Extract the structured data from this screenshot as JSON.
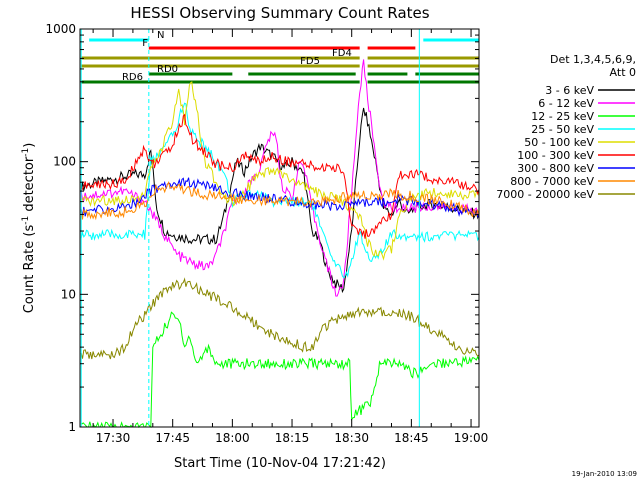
{
  "chart_data": {
    "type": "line",
    "title": "HESSI Observing Summary Count Rates",
    "xlabel": "Start Time (10-Nov-04 17:21:42)",
    "ylabel": "Count Rate (s",
    "ylabel_sup": "-1",
    "ylabel_mid": " detector",
    "ylabel_sup2": "-1",
    "ylabel_end": ")",
    "footer": "19-Jan-2010 13:09",
    "yscale": "log",
    "ylim": [
      1,
      1000
    ],
    "xlim_minutes_after_1730": [
      -8.3,
      92
    ],
    "x_ticks": [
      {
        "label": "17:30",
        "t": 0
      },
      {
        "label": "17:45",
        "t": 15
      },
      {
        "label": "18:00",
        "t": 30
      },
      {
        "label": "18:15",
        "t": 45
      },
      {
        "label": "18:30",
        "t": 60
      },
      {
        "label": "18:45",
        "t": 75
      },
      {
        "label": "19:00",
        "t": 90
      }
    ],
    "y_ticks": [
      {
        "label": "1",
        "v": 1
      },
      {
        "label": "10",
        "v": 10
      },
      {
        "label": "100",
        "v": 100
      },
      {
        "label": "1000",
        "v": 1000
      }
    ],
    "legend_header": [
      "Det 1,3,4,5,6,9,",
      "Att 0"
    ],
    "legend_placement": "right",
    "flags": [
      {
        "label": "N",
        "color": "#00ffff",
        "segments": [
          [
            -6,
            9
          ],
          [
            78,
            92
          ]
        ]
      },
      {
        "label": "F",
        "color": "#ff0000",
        "segments": [
          [
            9,
            62
          ],
          [
            64,
            76
          ]
        ]
      },
      {
        "label": "FD4",
        "color": "#999900",
        "segments": [
          [
            -8,
            62
          ],
          [
            64,
            92
          ]
        ]
      },
      {
        "label": "FD5",
        "color": "#999900",
        "segments": [
          [
            -8,
            62
          ],
          [
            64,
            92
          ]
        ]
      },
      {
        "label": "RD0",
        "color": "#007700",
        "segments": [
          [
            9,
            30
          ],
          [
            34,
            61
          ],
          [
            64,
            74
          ],
          [
            76,
            92
          ]
        ]
      },
      {
        "label": "RD6",
        "color": "#007700",
        "segments": [
          [
            -8,
            62
          ],
          [
            64,
            92
          ]
        ]
      }
    ],
    "series": [
      {
        "name": "3 - 6 keV",
        "color": "#000000",
        "points": [
          [
            -8,
            65
          ],
          [
            5,
            80
          ],
          [
            8,
            80
          ],
          [
            9.5,
            120
          ],
          [
            11,
            45
          ],
          [
            13,
            30
          ],
          [
            15,
            28
          ],
          [
            20,
            26
          ],
          [
            26,
            26
          ],
          [
            28,
            40
          ],
          [
            31,
            100
          ],
          [
            33,
            85
          ],
          [
            35,
            110
          ],
          [
            37,
            130
          ],
          [
            40,
            110
          ],
          [
            43,
            90
          ],
          [
            45,
            100
          ],
          [
            48,
            80
          ],
          [
            50,
            30
          ],
          [
            52,
            25
          ],
          [
            54,
            15
          ],
          [
            56,
            12
          ],
          [
            58,
            11
          ],
          [
            60,
            30
          ],
          [
            62,
            150
          ],
          [
            63,
            250
          ],
          [
            64,
            200
          ],
          [
            66,
            100
          ],
          [
            68,
            45
          ],
          [
            70,
            40
          ],
          [
            72,
            50
          ],
          [
            74,
            40
          ],
          [
            76,
            45
          ],
          [
            80,
            48
          ],
          [
            85,
            45
          ],
          [
            92,
            40
          ]
        ]
      },
      {
        "name": "6 - 12 keV",
        "color": "#ff00ff",
        "points": [
          [
            -8,
            55
          ],
          [
            3,
            60
          ],
          [
            8,
            50
          ],
          [
            10,
            40
          ],
          [
            13,
            28
          ],
          [
            16,
            20
          ],
          [
            20,
            17
          ],
          [
            24,
            16
          ],
          [
            26,
            20
          ],
          [
            28,
            30
          ],
          [
            30,
            48
          ],
          [
            33,
            60
          ],
          [
            37,
            90
          ],
          [
            39,
            150
          ],
          [
            41,
            160
          ],
          [
            42,
            80
          ],
          [
            43,
            60
          ],
          [
            45,
            55
          ],
          [
            47,
            100
          ],
          [
            48,
            90
          ],
          [
            50,
            45
          ],
          [
            53,
            20
          ],
          [
            56,
            10
          ],
          [
            58,
            12
          ],
          [
            60,
            60
          ],
          [
            62,
            350
          ],
          [
            63,
            550
          ],
          [
            64,
            300
          ],
          [
            66,
            120
          ],
          [
            67,
            60
          ],
          [
            68,
            50
          ],
          [
            70,
            45
          ],
          [
            75,
            45
          ],
          [
            80,
            46
          ],
          [
            85,
            45
          ],
          [
            92,
            42
          ]
        ]
      },
      {
        "name": "12 - 25 keV",
        "color": "#00ff00",
        "points": [
          [
            -8,
            1
          ],
          [
            -7.5,
            1
          ],
          [
            9.5,
            1
          ],
          [
            10,
            4
          ],
          [
            12,
            5
          ],
          [
            15,
            7
          ],
          [
            17,
            6
          ],
          [
            18,
            4
          ],
          [
            19,
            5
          ],
          [
            21,
            3
          ],
          [
            24,
            4
          ],
          [
            26,
            3
          ],
          [
            30,
            3
          ],
          [
            35,
            3
          ],
          [
            40,
            3
          ],
          [
            45,
            3
          ],
          [
            50,
            3
          ],
          [
            55,
            3
          ],
          [
            59.5,
            3
          ],
          [
            60,
            1.2
          ],
          [
            63,
            1.4
          ],
          [
            65,
            1.6
          ],
          [
            66,
            2
          ],
          [
            67,
            3
          ],
          [
            68,
            3
          ],
          [
            72,
            3
          ],
          [
            76,
            2.5
          ],
          [
            80,
            3
          ],
          [
            92,
            3.2
          ]
        ]
      },
      {
        "name": "25 - 50 keV",
        "color": "#00ffff",
        "points": [
          [
            -8,
            28
          ],
          [
            3,
            28
          ],
          [
            8,
            28
          ],
          [
            9.5,
            100
          ],
          [
            11,
            110
          ],
          [
            14,
            140
          ],
          [
            16,
            180
          ],
          [
            18,
            300
          ],
          [
            19,
            180
          ],
          [
            20,
            160
          ],
          [
            22,
            140
          ],
          [
            25,
            110
          ],
          [
            28,
            80
          ],
          [
            30,
            50
          ],
          [
            33,
            55
          ],
          [
            35,
            60
          ],
          [
            38,
            55
          ],
          [
            40,
            50
          ],
          [
            45,
            50
          ],
          [
            50,
            50
          ],
          [
            55,
            18
          ],
          [
            57,
            15
          ],
          [
            59,
            14
          ],
          [
            62,
            30
          ],
          [
            64,
            20
          ],
          [
            66,
            18
          ],
          [
            68,
            22
          ],
          [
            70,
            28
          ],
          [
            75,
            28
          ],
          [
            80,
            27
          ],
          [
            85,
            28
          ],
          [
            92,
            27
          ]
        ]
      },
      {
        "name": "50 - 100 keV",
        "color": "#dddd00",
        "points": [
          [
            -8,
            50
          ],
          [
            3,
            52
          ],
          [
            8,
            55
          ],
          [
            9.5,
            90
          ],
          [
            12,
            120
          ],
          [
            15,
            200
          ],
          [
            16.5,
            330
          ],
          [
            18,
            200
          ],
          [
            19.5,
            430
          ],
          [
            21,
            250
          ],
          [
            23,
            100
          ],
          [
            26,
            70
          ],
          [
            28,
            55
          ],
          [
            30,
            50
          ],
          [
            33,
            60
          ],
          [
            36,
            75
          ],
          [
            40,
            85
          ],
          [
            43,
            80
          ],
          [
            45,
            70
          ],
          [
            48,
            65
          ],
          [
            50,
            60
          ],
          [
            54,
            55
          ],
          [
            58,
            50
          ],
          [
            62,
            40
          ],
          [
            64,
            25
          ],
          [
            66,
            20
          ],
          [
            68,
            20
          ],
          [
            70,
            22
          ],
          [
            72,
            40
          ],
          [
            76,
            55
          ],
          [
            80,
            58
          ],
          [
            85,
            58
          ],
          [
            92,
            55
          ]
        ]
      },
      {
        "name": "100 - 300 keV",
        "color": "#ff0000",
        "points": [
          [
            -8,
            65
          ],
          [
            3,
            70
          ],
          [
            8,
            130
          ],
          [
            9.5,
            95
          ],
          [
            11,
            100
          ],
          [
            14,
            120
          ],
          [
            16,
            160
          ],
          [
            18,
            220
          ],
          [
            20,
            140
          ],
          [
            22,
            130
          ],
          [
            25,
            100
          ],
          [
            28,
            90
          ],
          [
            30,
            90
          ],
          [
            33,
            110
          ],
          [
            37,
            100
          ],
          [
            40,
            110
          ],
          [
            44,
            100
          ],
          [
            48,
            95
          ],
          [
            52,
            90
          ],
          [
            56,
            90
          ],
          [
            58,
            85
          ],
          [
            60,
            33
          ],
          [
            62,
            30
          ],
          [
            64,
            28
          ],
          [
            66,
            30
          ],
          [
            68,
            35
          ],
          [
            70,
            40
          ],
          [
            72,
            80
          ],
          [
            76,
            80
          ],
          [
            80,
            75
          ],
          [
            85,
            70
          ],
          [
            92,
            62
          ]
        ]
      },
      {
        "name": "300 - 800 keV",
        "color": "#0000ff",
        "points": [
          [
            -8,
            42
          ],
          [
            3,
            45
          ],
          [
            8,
            55
          ],
          [
            9.5,
            60
          ],
          [
            12,
            65
          ],
          [
            15,
            70
          ],
          [
            18,
            70
          ],
          [
            21,
            68
          ],
          [
            24,
            65
          ],
          [
            27,
            60
          ],
          [
            30,
            58
          ],
          [
            33,
            55
          ],
          [
            37,
            55
          ],
          [
            40,
            52
          ],
          [
            45,
            50
          ],
          [
            50,
            48
          ],
          [
            55,
            46
          ],
          [
            60,
            48
          ],
          [
            64,
            50
          ],
          [
            68,
            50
          ],
          [
            72,
            52
          ],
          [
            76,
            50
          ],
          [
            80,
            48
          ],
          [
            85,
            45
          ],
          [
            92,
            38
          ]
        ]
      },
      {
        "name": "800 - 7000 keV",
        "color": "#ff8800",
        "points": [
          [
            -8,
            40
          ],
          [
            3,
            42
          ],
          [
            8,
            48
          ],
          [
            9.5,
            58
          ],
          [
            12,
            62
          ],
          [
            15,
            65
          ],
          [
            20,
            60
          ],
          [
            25,
            55
          ],
          [
            30,
            53
          ],
          [
            35,
            52
          ],
          [
            40,
            50
          ],
          [
            45,
            50
          ],
          [
            50,
            50
          ],
          [
            55,
            52
          ],
          [
            60,
            55
          ],
          [
            65,
            56
          ],
          [
            70,
            57
          ],
          [
            75,
            55
          ],
          [
            80,
            52
          ],
          [
            85,
            48
          ],
          [
            92,
            40
          ]
        ]
      },
      {
        "name": "7000 - 20000 keV",
        "color": "#888800",
        "points": [
          [
            -8,
            3.5
          ],
          [
            0,
            3.5
          ],
          [
            3,
            4
          ],
          [
            6,
            6
          ],
          [
            8,
            7
          ],
          [
            9.5,
            8
          ],
          [
            12,
            10
          ],
          [
            15,
            12
          ],
          [
            18,
            12
          ],
          [
            21,
            11
          ],
          [
            24,
            10
          ],
          [
            27,
            9
          ],
          [
            30,
            8
          ],
          [
            33,
            7
          ],
          [
            36,
            6
          ],
          [
            40,
            5
          ],
          [
            44,
            4.5
          ],
          [
            48,
            4
          ],
          [
            50,
            4
          ],
          [
            52,
            5
          ],
          [
            54,
            6
          ],
          [
            56,
            6.5
          ],
          [
            60,
            7
          ],
          [
            65,
            7.5
          ],
          [
            70,
            7.5
          ],
          [
            74,
            7
          ],
          [
            78,
            6
          ],
          [
            82,
            5
          ],
          [
            86,
            4
          ],
          [
            92,
            3.5
          ]
        ]
      }
    ],
    "vlines": [
      {
        "t": -8,
        "color": "#00ffff",
        "style": "solid"
      },
      {
        "t": 9,
        "color": "#00ffff",
        "style": "dashed"
      },
      {
        "t": 77,
        "color": "#00ffff",
        "style": "solid"
      },
      {
        "t": 92,
        "color": "#00ffff",
        "style": "dashed"
      }
    ]
  }
}
